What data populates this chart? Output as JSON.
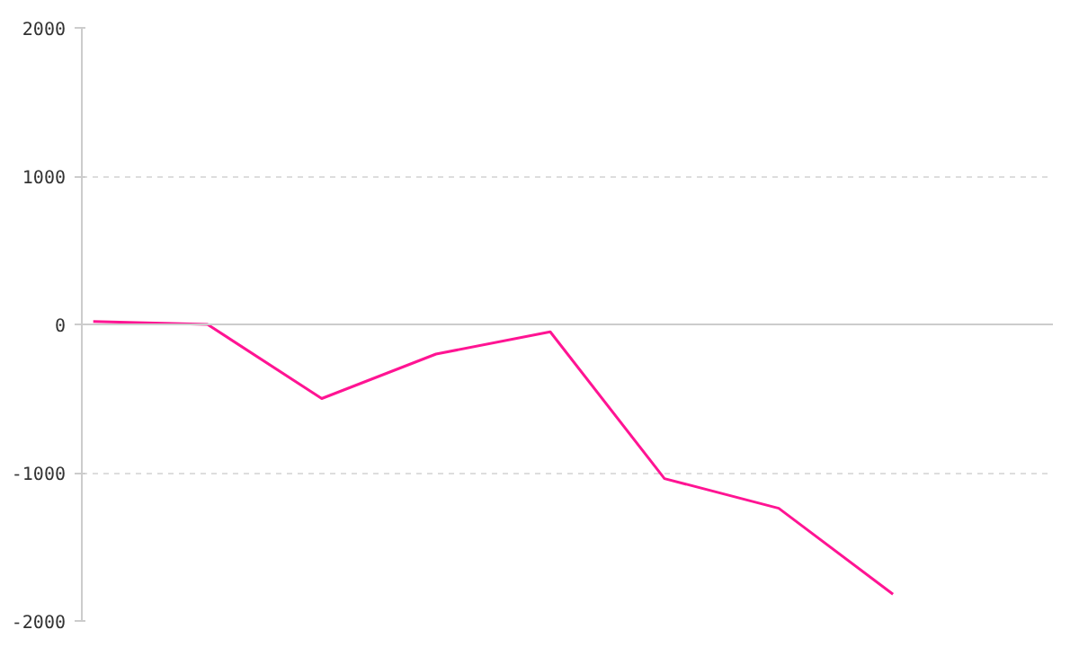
{
  "chart_data": {
    "type": "line",
    "categories": [
      null,
      null,
      null,
      null,
      null,
      null,
      null,
      null
    ],
    "series": [
      {
        "color": "#ff1493",
        "values": [
          20,
          0,
          -500,
          -200,
          -50,
          -1040,
          -1240,
          -1820
        ]
      }
    ],
    "ylim": [
      -2000,
      2000
    ],
    "yticks": [
      -2000,
      -1000,
      0,
      1000,
      2000
    ],
    "grid": "y",
    "tick_labels": "y",
    "marker": "none",
    "line_style": "solid"
  }
}
